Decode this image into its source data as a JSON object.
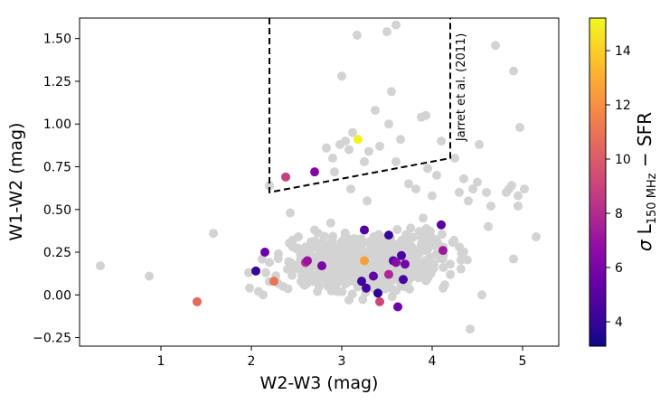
{
  "chart_data": {
    "type": "scatter",
    "xlabel": "W2-W3 (mag)",
    "ylabel": "W1-W2 (mag)",
    "xlim": [
      0.1,
      5.4
    ],
    "ylim": [
      -0.3,
      1.62
    ],
    "xticks": [
      {
        "value": 1,
        "label": "1"
      },
      {
        "value": 2,
        "label": "2"
      },
      {
        "value": 3,
        "label": "3"
      },
      {
        "value": 4,
        "label": "4"
      },
      {
        "value": 5,
        "label": "5"
      }
    ],
    "yticks": [
      {
        "value": -0.25,
        "label": "−0.25"
      },
      {
        "value": 0.0,
        "label": "0.00"
      },
      {
        "value": 0.25,
        "label": "0.25"
      },
      {
        "value": 0.5,
        "label": "0.50"
      },
      {
        "value": 0.75,
        "label": "0.75"
      },
      {
        "value": 1.0,
        "label": "1.00"
      },
      {
        "value": 1.25,
        "label": "1.25"
      },
      {
        "value": 1.5,
        "label": "1.50"
      }
    ],
    "wedge": {
      "label": "Jarret et al. (2011)",
      "color": "#000000",
      "style": "dashed",
      "path": [
        [
          2.2,
          1.62
        ],
        [
          2.2,
          0.6
        ],
        [
          4.2,
          0.8
        ],
        [
          4.2,
          1.62
        ]
      ]
    },
    "background_series": {
      "name": "All sources",
      "color": "#d3d3d3",
      "points": [
        [
          0.33,
          0.17
        ],
        [
          0.87,
          0.11
        ],
        [
          1.58,
          0.36
        ],
        [
          1.97,
          0.13
        ],
        [
          1.98,
          0.04
        ],
        [
          2.08,
          0.02
        ],
        [
          2.13,
          0.0
        ],
        [
          2.16,
          0.13
        ],
        [
          2.2,
          0.64
        ],
        [
          2.3,
          0.24
        ],
        [
          2.4,
          0.15
        ],
        [
          2.43,
          0.48
        ],
        [
          2.52,
          0.34
        ],
        [
          2.6,
          0.22
        ],
        [
          2.66,
          0.31
        ],
        [
          2.83,
          0.86
        ],
        [
          2.9,
          0.8
        ],
        [
          2.92,
          0.72
        ],
        [
          2.98,
          0.88
        ],
        [
          3.0,
          1.28
        ],
        [
          3.04,
          0.9
        ],
        [
          3.08,
          0.85
        ],
        [
          3.12,
          0.95
        ],
        [
          3.17,
          1.52
        ],
        [
          3.25,
          0.78
        ],
        [
          3.3,
          0.84
        ],
        [
          3.37,
          1.08
        ],
        [
          3.42,
          0.87
        ],
        [
          3.52,
          1.0
        ],
        [
          3.5,
          1.54
        ],
        [
          3.55,
          1.19
        ],
        [
          3.6,
          0.78
        ],
        [
          3.65,
          0.91
        ],
        [
          3.74,
          0.65
        ],
        [
          3.82,
          0.62
        ],
        [
          3.88,
          1.04
        ],
        [
          3.93,
          1.05
        ],
        [
          3.95,
          0.74
        ],
        [
          4.05,
          0.7
        ],
        [
          4.1,
          0.9
        ],
        [
          4.25,
          0.8
        ],
        [
          4.3,
          0.6
        ],
        [
          4.35,
          0.68
        ],
        [
          4.4,
          0.55
        ],
        [
          4.45,
          0.62
        ],
        [
          4.5,
          0.66
        ],
        [
          4.52,
          0.88
        ],
        [
          4.6,
          0.6
        ],
        [
          4.65,
          0.52
        ],
        [
          4.62,
          0.4
        ],
        [
          4.7,
          1.46
        ],
        [
          4.82,
          0.6
        ],
        [
          4.85,
          0.62
        ],
        [
          4.9,
          1.31
        ],
        [
          4.88,
          0.64
        ],
        [
          4.95,
          0.58
        ],
        [
          4.95,
          0.52
        ],
        [
          4.97,
          0.98
        ],
        [
          5.02,
          0.62
        ],
        [
          5.15,
          0.34
        ],
        [
          4.9,
          0.21
        ],
        [
          4.55,
          0.0
        ],
        [
          4.42,
          -0.2
        ],
        [
          3.6,
          1.58
        ],
        [
          2.45,
          0.16
        ],
        [
          2.55,
          0.08
        ],
        [
          2.75,
          0.05
        ],
        [
          2.85,
          0.1
        ],
        [
          2.95,
          0.02
        ],
        [
          3.08,
          -0.03
        ],
        [
          3.45,
          0.22
        ],
        [
          3.55,
          0.04
        ],
        [
          3.85,
          0.1
        ],
        [
          4.12,
          0.04
        ],
        [
          4.2,
          0.18
        ],
        [
          4.3,
          0.28
        ],
        [
          2.2,
          0.19
        ],
        [
          2.7,
          0.38
        ],
        [
          3.28,
          0.55
        ],
        [
          3.1,
          0.62
        ],
        [
          3.9,
          0.45
        ],
        [
          4.0,
          0.58
        ],
        [
          2.5,
          0.27
        ],
        [
          2.35,
          0.05
        ]
      ]
    },
    "colored_series": {
      "name": "σ L150 MHz − SFR",
      "colorbar": {
        "label_sigma": "σ",
        "label_L": "L",
        "label_sub": "150 MHz",
        "label_rest": " − SFR",
        "range": [
          3.1,
          15.2
        ],
        "ticks": [
          {
            "value": 4,
            "label": "4"
          },
          {
            "value": 6,
            "label": "6"
          },
          {
            "value": 8,
            "label": "8"
          },
          {
            "value": 10,
            "label": "10"
          },
          {
            "value": 12,
            "label": "12"
          },
          {
            "value": 14,
            "label": "14"
          }
        ]
      },
      "points": [
        {
          "x": 3.18,
          "y": 0.91,
          "c": 15.0
        },
        {
          "x": 2.38,
          "y": 0.69,
          "c": 8.8
        },
        {
          "x": 2.7,
          "y": 0.72,
          "c": 6.3
        },
        {
          "x": 1.4,
          "y": -0.04,
          "c": 10.5
        },
        {
          "x": 2.25,
          "y": 0.08,
          "c": 11.0
        },
        {
          "x": 2.05,
          "y": 0.14,
          "c": 4.0
        },
        {
          "x": 2.15,
          "y": 0.25,
          "c": 5.5
        },
        {
          "x": 2.6,
          "y": 0.19,
          "c": 8.0
        },
        {
          "x": 2.62,
          "y": 0.2,
          "c": 7.0
        },
        {
          "x": 2.78,
          "y": 0.17,
          "c": 6.0
        },
        {
          "x": 3.25,
          "y": 0.38,
          "c": 4.8
        },
        {
          "x": 3.25,
          "y": 0.2,
          "c": 12.5
        },
        {
          "x": 3.22,
          "y": 0.08,
          "c": 4.2
        },
        {
          "x": 3.27,
          "y": 0.04,
          "c": 4.5
        },
        {
          "x": 3.35,
          "y": 0.11,
          "c": 5.2
        },
        {
          "x": 3.4,
          "y": 0.01,
          "c": 3.8
        },
        {
          "x": 3.42,
          "y": -0.04,
          "c": 9.2
        },
        {
          "x": 3.52,
          "y": 0.35,
          "c": 4.0
        },
        {
          "x": 3.52,
          "y": 0.12,
          "c": 7.8
        },
        {
          "x": 3.57,
          "y": 0.2,
          "c": 5.0
        },
        {
          "x": 3.6,
          "y": 0.19,
          "c": 6.5
        },
        {
          "x": 3.66,
          "y": 0.23,
          "c": 4.6
        },
        {
          "x": 3.7,
          "y": 0.18,
          "c": 5.8
        },
        {
          "x": 3.68,
          "y": 0.09,
          "c": 4.4
        },
        {
          "x": 3.62,
          "y": -0.07,
          "c": 5.6
        },
        {
          "x": 4.1,
          "y": 0.41,
          "c": 5.0
        },
        {
          "x": 4.12,
          "y": 0.26,
          "c": 7.2
        }
      ]
    }
  }
}
